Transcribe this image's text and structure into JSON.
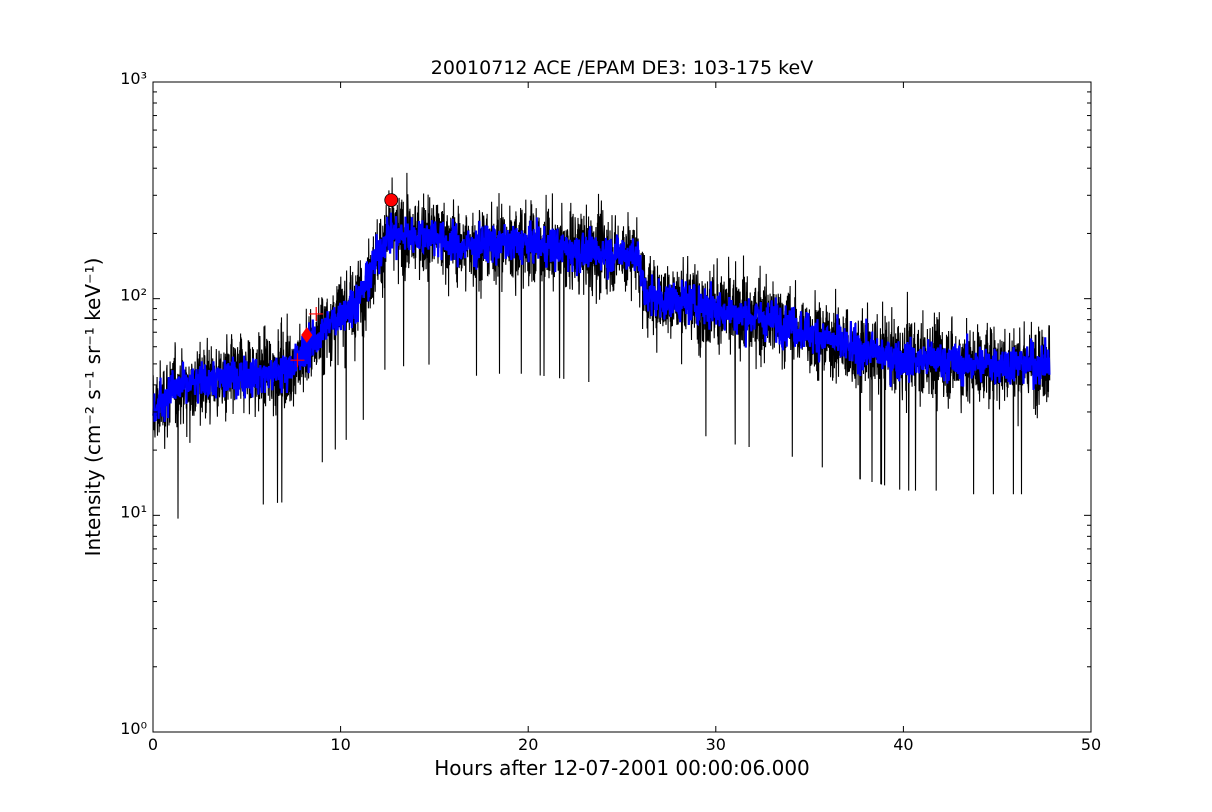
{
  "chart_data": {
    "type": "line",
    "title": "20010712 ACE /EPAM DE3: 103-175 keV",
    "xlabel": "Hours after 12-07-2001 00:00:06.000",
    "ylabel": "Intensity (cm⁻² s⁻¹ sr⁻¹ keV⁻¹)",
    "x_ticks": [
      "0",
      "10",
      "20",
      "30",
      "40",
      "50"
    ],
    "y_ticks": [
      "10⁰",
      "10¹",
      "10²",
      "10³"
    ],
    "xlim": [
      0,
      50
    ],
    "ylim": [
      1,
      1000
    ],
    "yscale": "log",
    "grid": false,
    "colors": {
      "raw": "#000000",
      "smoothed": "#0000ff",
      "markers": "#ff0000"
    },
    "series": [
      {
        "style": "black noisy line",
        "x": [
          0,
          1,
          2,
          3,
          4,
          5,
          6,
          7,
          8,
          9,
          10,
          11,
          12,
          12.5,
          13,
          14,
          15,
          16,
          17,
          18,
          19,
          20,
          21,
          22,
          23,
          24,
          25,
          25.8,
          26.2,
          27,
          28,
          29,
          30,
          31,
          32,
          33,
          34,
          35,
          36,
          37,
          38,
          39,
          40,
          41,
          42,
          43,
          44,
          45,
          46,
          47,
          47.8
        ],
        "y": [
          30,
          38,
          40,
          42,
          43,
          44,
          45,
          46,
          55,
          70,
          85,
          100,
          160,
          200,
          195,
          195,
          200,
          175,
          175,
          180,
          180,
          180,
          175,
          170,
          165,
          165,
          160,
          165,
          105,
          100,
          98,
          95,
          90,
          85,
          82,
          80,
          75,
          70,
          65,
          60,
          58,
          55,
          52,
          52,
          52,
          50,
          50,
          50,
          50,
          50,
          50
        ]
      },
      {
        "style": "blue smoothed line",
        "x": [
          0,
          1,
          2,
          3,
          4,
          5,
          6,
          7,
          8,
          9,
          10,
          11,
          12,
          12.5,
          13,
          14,
          15,
          16,
          17,
          18,
          19,
          20,
          21,
          22,
          23,
          24,
          25,
          25.8,
          26.2,
          27,
          28,
          29,
          30,
          31,
          32,
          33,
          34,
          35,
          36,
          37,
          38,
          39,
          40,
          41,
          42,
          43,
          44,
          45,
          46,
          47,
          47.8
        ],
        "y": [
          30,
          38,
          40,
          42,
          43,
          44,
          45,
          46,
          55,
          70,
          85,
          100,
          160,
          200,
          195,
          195,
          200,
          175,
          175,
          180,
          180,
          180,
          175,
          170,
          165,
          165,
          160,
          165,
          105,
          100,
          98,
          95,
          90,
          85,
          82,
          80,
          75,
          70,
          65,
          60,
          58,
          55,
          52,
          52,
          52,
          50,
          50,
          50,
          50,
          50,
          50
        ]
      }
    ],
    "markers": [
      {
        "kind": "plus",
        "x": 7.7,
        "y": 52
      },
      {
        "kind": "diamond",
        "x": 8.2,
        "y": 68
      },
      {
        "kind": "plus",
        "x": 8.7,
        "y": 85
      },
      {
        "kind": "circle",
        "x": 12.7,
        "y": 285
      }
    ]
  }
}
